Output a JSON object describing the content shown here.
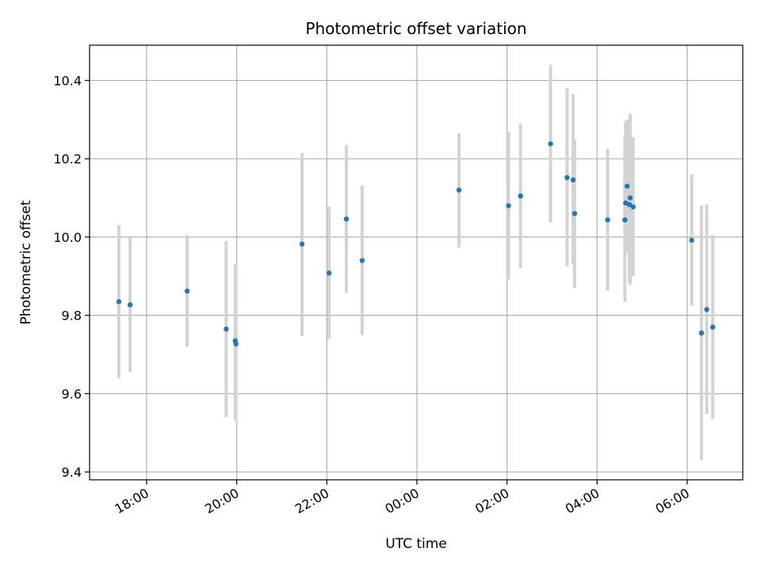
{
  "chart_data": {
    "type": "scatter",
    "title": "Photometric offset variation",
    "xlabel": "UTC time",
    "ylabel": "Photometric offset",
    "grid": true,
    "x_tick_labels": [
      "18:00",
      "20:00",
      "22:00",
      "00:00",
      "02:00",
      "04:00",
      "06:00"
    ],
    "y_tick_labels": [
      "9.4",
      "9.6",
      "9.8",
      "10.0",
      "10.2",
      "10.4"
    ],
    "y_ticks": [
      9.4,
      9.6,
      9.8,
      10.0,
      10.2,
      10.4
    ],
    "x_ticks": [
      "17:59",
      "19:59",
      "21:59",
      "23:59",
      "01:59",
      "03:59",
      "05:59"
    ],
    "xlim": [
      "16:43",
      "07:13"
    ],
    "ylim": [
      9.38,
      10.49
    ],
    "colors": {
      "point": "#1f77b4",
      "errorbar": "#d3d3d3",
      "grid": "#b0b0b0"
    },
    "points": [
      {
        "time": "17:22",
        "y": 9.835,
        "low": 9.64,
        "high": 10.03
      },
      {
        "time": "17:37",
        "y": 9.827,
        "low": 9.655,
        "high": 10.0
      },
      {
        "time": "18:53",
        "y": 9.862,
        "low": 9.72,
        "high": 10.005
      },
      {
        "time": "19:45",
        "y": 9.765,
        "low": 9.54,
        "high": 9.99
      },
      {
        "time": "19:57",
        "y": 9.735,
        "low": 9.535,
        "high": 9.93
      },
      {
        "time": "19:58",
        "y": 9.727,
        "low": 9.53,
        "high": 9.93
      },
      {
        "time": "21:26",
        "y": 9.982,
        "low": 9.748,
        "high": 10.215
      },
      {
        "time": "22:02",
        "y": 9.908,
        "low": 9.74,
        "high": 10.078
      },
      {
        "time": "22:25",
        "y": 10.046,
        "low": 9.858,
        "high": 10.235
      },
      {
        "time": "22:46",
        "y": 9.94,
        "low": 9.75,
        "high": 10.132
      },
      {
        "time": "00:55",
        "y": 10.12,
        "low": 9.973,
        "high": 10.265
      },
      {
        "time": "02:01",
        "y": 10.08,
        "low": 9.892,
        "high": 10.27
      },
      {
        "time": "02:17",
        "y": 10.105,
        "low": 9.92,
        "high": 10.29
      },
      {
        "time": "02:57",
        "y": 10.238,
        "low": 10.037,
        "high": 10.44
      },
      {
        "time": "03:19",
        "y": 10.152,
        "low": 9.925,
        "high": 10.38
      },
      {
        "time": "03:27",
        "y": 10.146,
        "low": 9.93,
        "high": 10.365
      },
      {
        "time": "03:29",
        "y": 10.06,
        "low": 9.87,
        "high": 10.25
      },
      {
        "time": "04:13",
        "y": 10.044,
        "low": 9.863,
        "high": 10.225
      },
      {
        "time": "04:36",
        "y": 10.044,
        "low": 9.835,
        "high": 10.255
      },
      {
        "time": "04:37",
        "y": 10.087,
        "low": 9.96,
        "high": 10.295
      },
      {
        "time": "04:39",
        "y": 10.13,
        "low": 9.96,
        "high": 10.3
      },
      {
        "time": "04:42",
        "y": 10.083,
        "low": 9.885,
        "high": 10.28
      },
      {
        "time": "04:43",
        "y": 10.1,
        "low": 9.878,
        "high": 10.315
      },
      {
        "time": "04:47",
        "y": 10.077,
        "low": 9.9,
        "high": 10.255
      },
      {
        "time": "06:05",
        "y": 9.992,
        "low": 9.825,
        "high": 10.16
      },
      {
        "time": "06:18",
        "y": 9.755,
        "low": 9.43,
        "high": 10.08
      },
      {
        "time": "06:25",
        "y": 9.815,
        "low": 9.548,
        "high": 10.083
      },
      {
        "time": "06:33",
        "y": 9.77,
        "low": 9.535,
        "high": 10.005
      }
    ]
  }
}
